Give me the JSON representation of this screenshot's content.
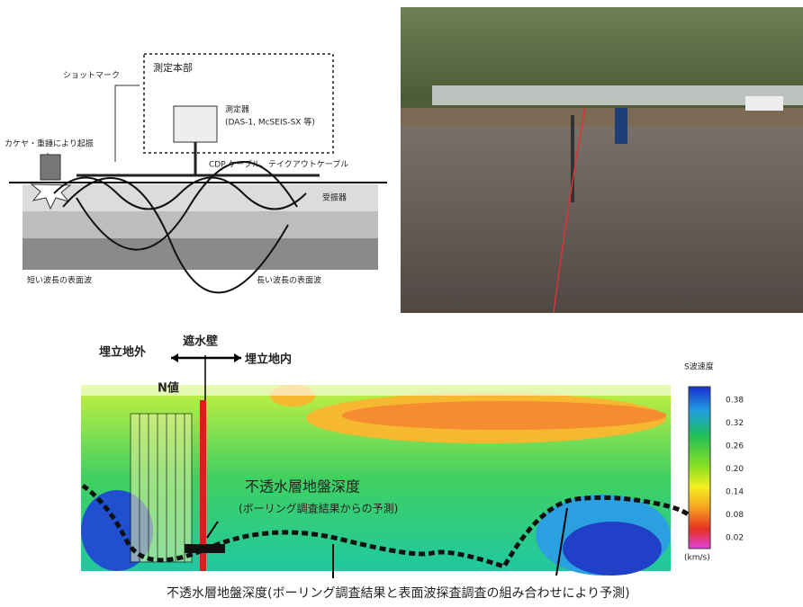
{
  "survey_diagram": {
    "shot_mark": "ショットマーク",
    "headquarters": "測定本部",
    "instrument": "測定器",
    "instrument_models": "(DAS-1, McSEIS-SX 等)",
    "source": "カケヤ・重錘により起振",
    "cable": "CDP ケーブル、テイクアウトケーブル",
    "geophone": "受振器",
    "short_wave": "短い波長の表面波",
    "long_wave": "長い波長の表面波"
  },
  "section": {
    "outside": "埋立地外",
    "wall": "遮水壁",
    "inside": "埋立地内",
    "n_value": "N値",
    "colorbar_title": "S波速度",
    "colorbar_ticks": [
      "0.38",
      "0.32",
      "0.26",
      "0.20",
      "0.14",
      "0.08",
      "0.02"
    ],
    "colorbar_unit": "(km/s)",
    "depth_label": "不透水層地盤深度",
    "depth_note": "(ボーリング調査結果からの予測)",
    "bottom_caption": "不透水層地盤深度(ボーリング調査結果と表面波探査調査の組み合わせにより予測)"
  }
}
